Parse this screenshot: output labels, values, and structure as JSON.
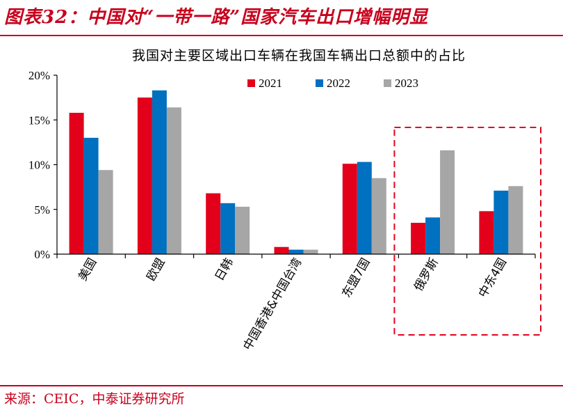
{
  "figure": {
    "title": "图表32：中国对“一带一路”国家汽车出口增幅明显",
    "source": "来源：CEIC，中泰证券研究所"
  },
  "colors": {
    "brand_red": "#c8001c"
  },
  "chart_data": {
    "type": "bar",
    "title": "我国对主要区域出口车辆在我国车辆出口总额中的占比",
    "xlabel": "",
    "ylabel": "",
    "categories": [
      "美国",
      "欧盟",
      "日韩",
      "中国香港&中国台湾",
      "东盟7国",
      "俄罗斯",
      "中东4国"
    ],
    "series": [
      {
        "name": "2021",
        "color": "#e3001b",
        "values": [
          15.8,
          17.5,
          6.8,
          0.8,
          10.1,
          3.5,
          4.8
        ]
      },
      {
        "name": "2022",
        "color": "#0070c0",
        "values": [
          13.0,
          18.3,
          5.7,
          0.5,
          10.3,
          4.1,
          7.1
        ]
      },
      {
        "name": "2023",
        "color": "#a6a6a6",
        "values": [
          9.4,
          16.4,
          5.3,
          0.5,
          8.5,
          11.6,
          7.6
        ]
      }
    ],
    "yticks": [
      "0%",
      "5%",
      "10%",
      "15%",
      "20%"
    ],
    "ylim": [
      0,
      20
    ],
    "grid": false,
    "legend_position": "top-right",
    "highlight": {
      "categories": [
        "俄罗斯",
        "中东4国"
      ],
      "style": "dashed-red-box",
      "color": "#e3001b"
    }
  }
}
